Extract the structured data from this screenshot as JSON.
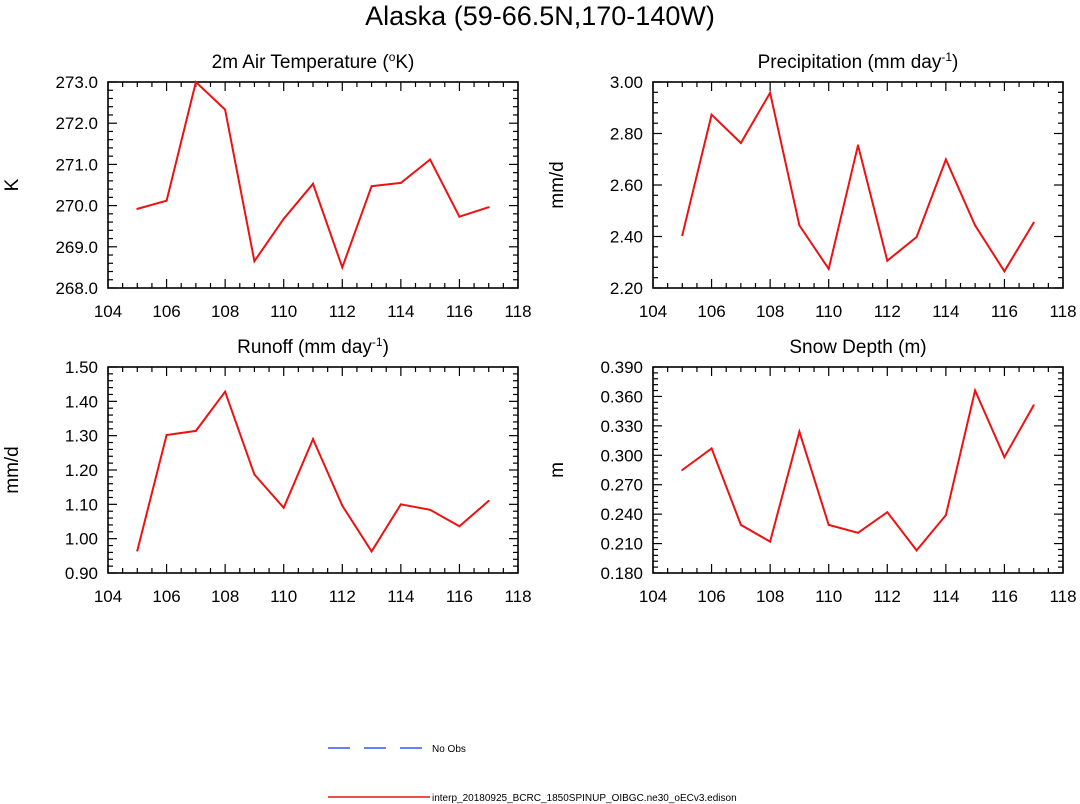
{
  "title": "Alaska (59-66.5N,170-140W)",
  "chart_data": [
    {
      "type": "line",
      "title": "2m Air Temperature (",
      "title_sup": "o",
      "title_after": "K)",
      "ylabel": "K",
      "xlim": [
        104,
        118
      ],
      "ylim": [
        268.0,
        273.0
      ],
      "xticks": [
        104,
        106,
        108,
        110,
        112,
        114,
        116,
        118
      ],
      "yticks": [
        268.0,
        269.0,
        270.0,
        271.0,
        272.0,
        273.0
      ],
      "ytick_labels": [
        "268.0",
        "269.0",
        "270.0",
        "271.0",
        "272.0",
        "273.0"
      ],
      "x": [
        105,
        106,
        107,
        108,
        109,
        110,
        111,
        112,
        113,
        114,
        115,
        116,
        117
      ],
      "series": [
        {
          "color": "#ee1111",
          "values": [
            269.92,
            270.12,
            273.0,
            272.33,
            268.65,
            269.68,
            270.53,
            268.5,
            270.47,
            270.55,
            271.12,
            269.73,
            269.96
          ]
        }
      ]
    },
    {
      "type": "line",
      "title": "Precipitation (mm day",
      "title_sup": "-1",
      "title_after": ")",
      "ylabel": "mm/d",
      "xlim": [
        104,
        118
      ],
      "ylim": [
        2.2,
        3.0
      ],
      "xticks": [
        104,
        106,
        108,
        110,
        112,
        114,
        116,
        118
      ],
      "yticks": [
        2.2,
        2.4,
        2.6,
        2.8,
        3.0
      ],
      "ytick_labels": [
        "2.20",
        "2.40",
        "2.60",
        "2.80",
        "3.00"
      ],
      "x": [
        105,
        106,
        107,
        108,
        109,
        110,
        111,
        112,
        113,
        114,
        115,
        116,
        117
      ],
      "series": [
        {
          "color": "#ee1111",
          "values": [
            2.405,
            2.873,
            2.763,
            2.958,
            2.443,
            2.274,
            2.754,
            2.306,
            2.398,
            2.699,
            2.443,
            2.265,
            2.454
          ]
        }
      ]
    },
    {
      "type": "line",
      "title": "Runoff (mm day",
      "title_sup": "-1",
      "title_after": ")",
      "ylabel": "mm/d",
      "xlim": [
        104,
        118
      ],
      "ylim": [
        0.9,
        1.5
      ],
      "xticks": [
        104,
        106,
        108,
        110,
        112,
        114,
        116,
        118
      ],
      "yticks": [
        0.9,
        1.0,
        1.1,
        1.2,
        1.3,
        1.4,
        1.5
      ],
      "ytick_labels": [
        "0.90",
        "1.00",
        "1.10",
        "1.20",
        "1.30",
        "1.40",
        "1.50"
      ],
      "x": [
        105,
        106,
        107,
        108,
        109,
        110,
        111,
        112,
        113,
        114,
        115,
        116,
        117
      ],
      "series": [
        {
          "color": "#ee1111",
          "values": [
            0.965,
            1.302,
            1.314,
            1.428,
            1.187,
            1.09,
            1.29,
            1.096,
            0.963,
            1.1,
            1.084,
            1.036,
            1.11
          ]
        }
      ]
    },
    {
      "type": "line",
      "title": "Snow Depth (m)",
      "title_sup": "",
      "title_after": "",
      "ylabel": "m",
      "xlim": [
        104,
        118
      ],
      "ylim": [
        0.18,
        0.39
      ],
      "xticks": [
        104,
        106,
        108,
        110,
        112,
        114,
        116,
        118
      ],
      "yticks": [
        0.18,
        0.21,
        0.24,
        0.27,
        0.3,
        0.33,
        0.36,
        0.39
      ],
      "ytick_labels": [
        "0.180",
        "0.210",
        "0.240",
        "0.270",
        "0.300",
        "0.330",
        "0.360",
        "0.390"
      ],
      "x": [
        105,
        106,
        107,
        108,
        109,
        110,
        111,
        112,
        113,
        114,
        115,
        116,
        117
      ],
      "series": [
        {
          "color": "#ee1111",
          "values": [
            0.285,
            0.307,
            0.229,
            0.212,
            0.324,
            0.229,
            0.221,
            0.242,
            0.203,
            0.239,
            0.366,
            0.298,
            0.351
          ]
        }
      ]
    }
  ],
  "legend": [
    {
      "label": "No Obs",
      "color": "#3355ff",
      "dashed": true
    },
    {
      "label": "interp_20180925_BCRC_1850SPINUP_OIBGC.ne30_oECv3.edison",
      "color": "#ee1111",
      "dashed": false
    }
  ]
}
